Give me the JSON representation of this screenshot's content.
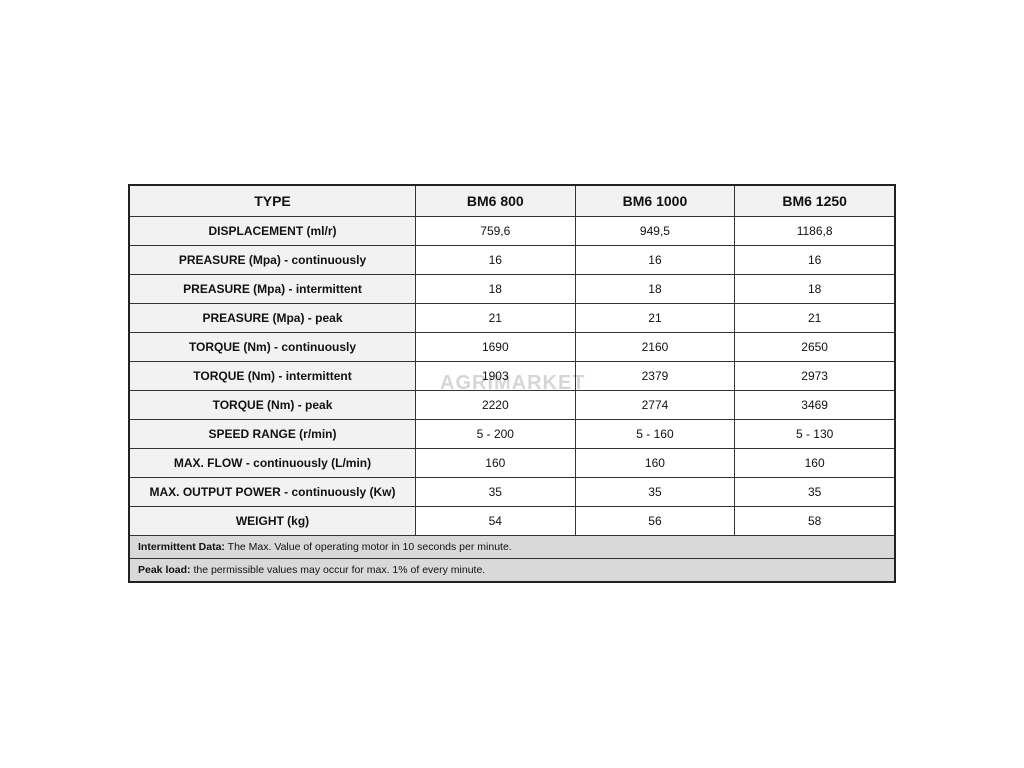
{
  "headers": [
    "TYPE",
    "BM6 800",
    "BM6 1000",
    "BM6 1250"
  ],
  "rows": [
    {
      "label": "DISPLACEMENT (ml/r)",
      "values": [
        "759,6",
        "949,5",
        "1186,8"
      ]
    },
    {
      "label": "PREASURE (Mpa) - continuously",
      "values": [
        "16",
        "16",
        "16"
      ]
    },
    {
      "label": "PREASURE (Mpa)  - intermittent",
      "values": [
        "18",
        "18",
        "18"
      ]
    },
    {
      "label": "PREASURE (Mpa) - peak",
      "values": [
        "21",
        "21",
        "21"
      ]
    },
    {
      "label": "TORQUE (Nm) - continuously",
      "values": [
        "1690",
        "2160",
        "2650"
      ]
    },
    {
      "label": "TORQUE (Nm)  - intermittent",
      "values": [
        "1903",
        "2379",
        "2973"
      ]
    },
    {
      "label": "TORQUE (Nm) - peak",
      "values": [
        "2220",
        "2774",
        "3469"
      ]
    },
    {
      "label": "SPEED RANGE (r/min)",
      "values": [
        "5 - 200",
        "5 - 160",
        "5 - 130"
      ]
    },
    {
      "label": "MAX. FLOW - continuously (L/min)",
      "values": [
        "160",
        "160",
        "160"
      ]
    },
    {
      "label": "MAX. OUTPUT POWER - continuously (Kw)",
      "values": [
        "35",
        "35",
        "35"
      ]
    },
    {
      "label": "WEIGHT (kg)",
      "values": [
        "54",
        "56",
        "58"
      ]
    }
  ],
  "notes": [
    {
      "bold": "Intermittent Data:",
      "text": " The Max. Value of operating motor in 10 seconds per minute."
    },
    {
      "bold": "Peak load:",
      "text": " the permissible values may occur for max. 1% of every minute."
    }
  ],
  "watermark": "AGRIMARKET"
}
